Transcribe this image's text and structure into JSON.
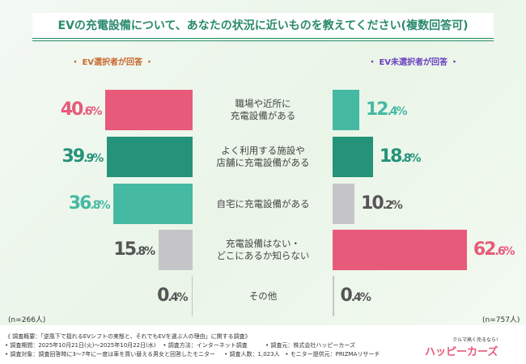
{
  "title": "EVの充電設備について、あなたの状況に近いものを教えてください(複数回答可)",
  "chart_data": {
    "type": "bar",
    "title": "EVの充電設備について、あなたの状況に近いものを教えてください(複数回答可)",
    "categories": [
      "職場や近所に\n充電設備がある",
      "よく利用する施設や\n店舗に充電設備がある",
      "自宅に充電設備がある",
      "充電設備はない・\nどこにあるか知らない",
      "その他"
    ],
    "series": [
      {
        "name": "・ EV選択者が回答 ・",
        "n": "(n=266人)",
        "values": [
          40.6,
          39.9,
          36.8,
          15.8,
          0.4
        ],
        "color": "#c8692e"
      },
      {
        "name": "・ EV未選択者が回答 ・",
        "n": "(n=757人)",
        "values": [
          12.4,
          18.8,
          10.2,
          62.6,
          0.4
        ],
        "color": "#6a3fc0"
      }
    ],
    "unit": "%",
    "rank_colors": [
      "#e85a7a",
      "#24937a",
      "#46b9a3",
      "#c5c5c8"
    ]
  },
  "footer": {
    "lines": [
      "《 調査概要：「逆風下で揺れるEVシフトの実態と、それでもEVを選ぶ人の理由」に関する調査》",
      "• 調査期間：2025年10月21日(火)～2025年10月22日(水)    • 調査方法：インターネット調査          • 調査元：株式会社ハッピーカーズ",
      "• 調査対象：調査回答時に3～7年に一度は車を買い替える男女と回答したモニター     • 調査人数：1,023人   • モニター提供元：PRIZMAリサーチ"
    ],
    "logo_tagline": "クルマ高く売るなら!",
    "logo_name": "ハッピーカーズ"
  }
}
